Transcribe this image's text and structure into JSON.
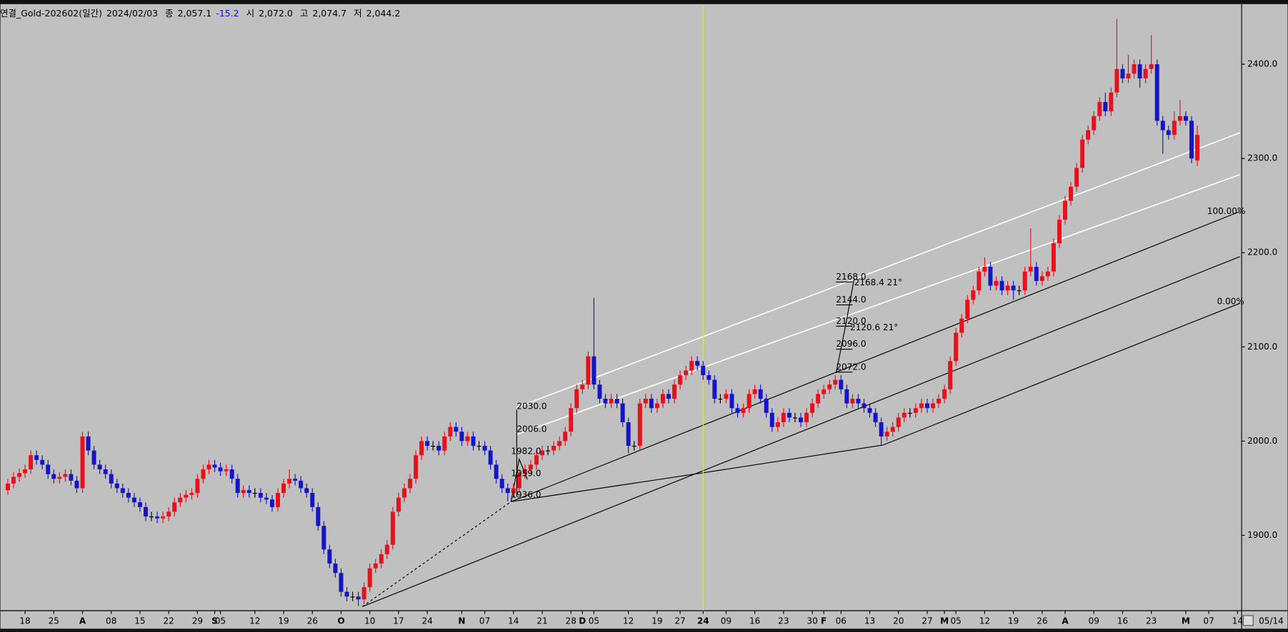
{
  "chart_data": {
    "type": "candlestick",
    "header": [
      "연결_Gold-202602(일간)",
      "2024/02/03",
      "종",
      "2,057.1",
      "-15.2",
      "시",
      "2,072.0",
      "고",
      "2,074.7",
      "저",
      "2,044.2"
    ],
    "open": [
      1948,
      1955,
      1962,
      1966,
      1970,
      1985,
      1980,
      1975,
      1965,
      1960,
      1962,
      1965,
      1958,
      1950,
      2005,
      1990,
      1975,
      1970,
      1965,
      1955,
      1950,
      1945,
      1940,
      1935,
      1930,
      1920,
      1920,
      1918,
      1920,
      1925,
      1935,
      1940,
      1943,
      1945,
      1960,
      1970,
      1975,
      1972,
      1968,
      1970,
      1960,
      1945,
      1948,
      1945,
      1945,
      1940,
      1938,
      1930,
      1945,
      1955,
      1960,
      1958,
      1950,
      1945,
      1930,
      1910,
      1885,
      1870,
      1860,
      1840,
      1835,
      1835,
      1832,
      1845,
      1865,
      1870,
      1880,
      1890,
      1925,
      1940,
      1950,
      1960,
      1985,
      2000,
      1995,
      1995,
      1990,
      2005,
      2015,
      2010,
      2000,
      2005,
      1995,
      1995,
      1990,
      1975,
      1960,
      1950,
      1945,
      1950,
      1965,
      1970,
      1975,
      1985,
      1990,
      1990,
      1995,
      2000,
      2010,
      2035,
      2055,
      2060,
      2090,
      2060,
      2045,
      2040,
      2045,
      2040,
      2020,
      1995,
      1995,
      2040,
      2045,
      2035,
      2040,
      2050,
      2045,
      2060,
      2070,
      2075,
      2085,
      2080,
      2070,
      2065,
      2045,
      2045,
      2050,
      2035,
      2030,
      2035,
      2050,
      2055,
      2045,
      2030,
      2015,
      2020,
      2030,
      2025,
      2025,
      2020,
      2030,
      2040,
      2050,
      2055,
      2060,
      2065,
      2055,
      2040,
      2045,
      2040,
      2035,
      2030,
      2020,
      2005,
      2010,
      2015,
      2025,
      2030,
      2030,
      2035,
      2040,
      2035,
      2040,
      2045,
      2055,
      2085,
      2115,
      2130,
      2150,
      2160,
      2180,
      2185,
      2165,
      2170,
      2160,
      2165,
      2160,
      2160,
      2180,
      2185,
      2170,
      2175,
      2180,
      2210,
      2235,
      2255,
      2270,
      2290,
      2320,
      2330,
      2345,
      2360,
      2350,
      2370,
      2395,
      2385,
      2390,
      2400,
      2385,
      2395,
      2400,
      2340,
      2330,
      2325,
      2340,
      2345,
      2340,
      2298
    ],
    "high": [
      1960,
      1967,
      1971,
      1975,
      1990,
      1990,
      1985,
      1980,
      1970,
      1967,
      1970,
      1970,
      1963,
      2010,
      2010,
      1995,
      1980,
      1975,
      1970,
      1960,
      1955,
      1950,
      1945,
      1940,
      1935,
      1925,
      1925,
      1925,
      1930,
      1940,
      1945,
      1948,
      1950,
      1965,
      1975,
      1980,
      1980,
      1977,
      1975,
      1975,
      1965,
      1953,
      1953,
      1950,
      1950,
      1945,
      1943,
      1950,
      1960,
      1970,
      1965,
      1963,
      1955,
      1950,
      1935,
      1915,
      1890,
      1875,
      1865,
      1845,
      1840,
      1840,
      1850,
      1870,
      1875,
      1885,
      1895,
      1930,
      1945,
      1955,
      1965,
      1990,
      2005,
      2005,
      2000,
      2000,
      2010,
      2020,
      2020,
      2015,
      2010,
      2010,
      2000,
      2000,
      1995,
      1980,
      1965,
      1955,
      1955,
      1970,
      1975,
      1980,
      1990,
      1995,
      1995,
      2000,
      2005,
      2015,
      2040,
      2060,
      2065,
      2095,
      2152,
      2065,
      2050,
      2050,
      2050,
      2045,
      2025,
      2000,
      2045,
      2050,
      2050,
      2045,
      2055,
      2055,
      2065,
      2075,
      2080,
      2090,
      2090,
      2085,
      2075,
      2070,
      2050,
      2055,
      2055,
      2040,
      2040,
      2055,
      2060,
      2060,
      2050,
      2035,
      2025,
      2035,
      2035,
      2030,
      2030,
      2035,
      2045,
      2055,
      2060,
      2065,
      2070,
      2070,
      2060,
      2050,
      2050,
      2045,
      2040,
      2035,
      2025,
      2015,
      2020,
      2030,
      2035,
      2035,
      2040,
      2045,
      2045,
      2045,
      2050,
      2060,
      2090,
      2120,
      2135,
      2155,
      2165,
      2185,
      2195,
      2190,
      2175,
      2175,
      2170,
      2170,
      2165,
      2185,
      2226,
      2190,
      2180,
      2185,
      2215,
      2240,
      2260,
      2275,
      2295,
      2325,
      2335,
      2350,
      2365,
      2370,
      2375,
      2448,
      2400,
      2410,
      2405,
      2405,
      2400,
      2431,
      2405,
      2345,
      2335,
      2350,
      2362,
      2350,
      2345,
      2335
    ],
    "low": [
      1943,
      1950,
      1957,
      1961,
      1965,
      1975,
      1970,
      1960,
      1955,
      1955,
      1957,
      1953,
      1945,
      1945,
      1985,
      1970,
      1965,
      1960,
      1950,
      1945,
      1940,
      1935,
      1930,
      1925,
      1915,
      1915,
      1913,
      1913,
      1915,
      1920,
      1930,
      1935,
      1938,
      1940,
      1955,
      1965,
      1967,
      1963,
      1963,
      1955,
      1940,
      1940,
      1940,
      1940,
      1935,
      1933,
      1925,
      1925,
      1940,
      1950,
      1953,
      1945,
      1940,
      1925,
      1905,
      1880,
      1865,
      1855,
      1835,
      1830,
      1830,
      1825,
      1827,
      1840,
      1860,
      1865,
      1875,
      1885,
      1920,
      1935,
      1945,
      1955,
      1980,
      1990,
      1990,
      1985,
      1985,
      2000,
      2005,
      1995,
      1995,
      1990,
      1990,
      1985,
      1970,
      1955,
      1945,
      1936,
      1940,
      1945,
      1960,
      1965,
      1970,
      1980,
      1985,
      1985,
      1990,
      1995,
      2005,
      2030,
      2050,
      2055,
      2055,
      2040,
      2035,
      2035,
      2035,
      2015,
      1987,
      1990,
      1990,
      2035,
      2030,
      2030,
      2035,
      2040,
      2040,
      2055,
      2065,
      2070,
      2075,
      2065,
      2060,
      2040,
      2040,
      2040,
      2030,
      2025,
      2025,
      2030,
      2045,
      2040,
      2025,
      2010,
      2010,
      2015,
      2020,
      2020,
      2015,
      2015,
      2025,
      2035,
      2045,
      2050,
      2055,
      2050,
      2035,
      2035,
      2035,
      2030,
      2025,
      2015,
      1996,
      2000,
      2005,
      2010,
      2020,
      2025,
      2025,
      2030,
      2030,
      2030,
      2035,
      2040,
      2050,
      2080,
      2110,
      2125,
      2145,
      2155,
      2175,
      2160,
      2160,
      2155,
      2155,
      2150,
      2155,
      2155,
      2175,
      2165,
      2165,
      2170,
      2175,
      2205,
      2230,
      2250,
      2265,
      2285,
      2315,
      2325,
      2340,
      2345,
      2345,
      2365,
      2380,
      2380,
      2385,
      2375,
      2380,
      2390,
      2335,
      2305,
      2320,
      2320,
      2335,
      2335,
      2295,
      2292
    ],
    "close": [
      1955,
      1962,
      1966,
      1970,
      1985,
      1980,
      1975,
      1965,
      1960,
      1962,
      1965,
      1958,
      1950,
      2005,
      1990,
      1975,
      1970,
      1965,
      1955,
      1950,
      1945,
      1940,
      1935,
      1930,
      1920,
      1920,
      1918,
      1920,
      1925,
      1935,
      1940,
      1943,
      1945,
      1960,
      1970,
      1975,
      1972,
      1968,
      1970,
      1960,
      1945,
      1948,
      1945,
      1945,
      1940,
      1938,
      1930,
      1945,
      1955,
      1960,
      1958,
      1950,
      1945,
      1930,
      1910,
      1885,
      1870,
      1860,
      1840,
      1835,
      1835,
      1832,
      1845,
      1865,
      1870,
      1880,
      1890,
      1925,
      1940,
      1950,
      1960,
      1985,
      2000,
      1995,
      1995,
      1990,
      2005,
      2015,
      2010,
      2000,
      2005,
      1995,
      1995,
      1990,
      1975,
      1960,
      1950,
      1945,
      1950,
      1965,
      1970,
      1975,
      1985,
      1990,
      1990,
      1995,
      2000,
      2010,
      2035,
      2055,
      2060,
      2090,
      2060,
      2045,
      2040,
      2045,
      2040,
      2020,
      1995,
      1995,
      2040,
      2045,
      2035,
      2040,
      2050,
      2045,
      2060,
      2070,
      2075,
      2085,
      2080,
      2070,
      2065,
      2045,
      2045,
      2050,
      2035,
      2030,
      2035,
      2050,
      2055,
      2045,
      2030,
      2015,
      2020,
      2030,
      2025,
      2025,
      2020,
      2030,
      2040,
      2050,
      2055,
      2060,
      2065,
      2055,
      2040,
      2045,
      2040,
      2035,
      2030,
      2020,
      2005,
      2010,
      2015,
      2025,
      2030,
      2030,
      2035,
      2040,
      2035,
      2040,
      2045,
      2055,
      2085,
      2115,
      2130,
      2150,
      2160,
      2180,
      2185,
      2165,
      2170,
      2160,
      2165,
      2160,
      2160,
      2180,
      2185,
      2170,
      2175,
      2180,
      2210,
      2235,
      2255,
      2270,
      2290,
      2320,
      2330,
      2345,
      2360,
      2350,
      2370,
      2395,
      2385,
      2390,
      2400,
      2385,
      2395,
      2400,
      2340,
      2330,
      2325,
      2340,
      2345,
      2340,
      2300,
      2325
    ],
    "up_color": "#e8101a",
    "down_color": "#1414c8",
    "xlim": [
      -1.29,
      214.43
    ],
    "xticks": [
      {
        "value": 3,
        "label": "18"
      },
      {
        "value": 8,
        "label": "25"
      },
      {
        "value": 13,
        "label": "A"
      },
      {
        "value": 18,
        "label": "08"
      },
      {
        "value": 23,
        "label": "15"
      },
      {
        "value": 28,
        "label": "22"
      },
      {
        "value": 33,
        "label": "29"
      },
      {
        "value": 36,
        "label": "S"
      },
      {
        "value": 37,
        "label": "05"
      },
      {
        "value": 43,
        "label": "12"
      },
      {
        "value": 48,
        "label": "19"
      },
      {
        "value": 53,
        "label": "26"
      },
      {
        "value": 58,
        "label": "O"
      },
      {
        "value": 63,
        "label": "10"
      },
      {
        "value": 68,
        "label": "17"
      },
      {
        "value": 73,
        "label": "24"
      },
      {
        "value": 79,
        "label": "N"
      },
      {
        "value": 83,
        "label": "07"
      },
      {
        "value": 88,
        "label": "14"
      },
      {
        "value": 93,
        "label": "21"
      },
      {
        "value": 98,
        "label": "28"
      },
      {
        "value": 100,
        "label": "D"
      },
      {
        "value": 102,
        "label": "05"
      },
      {
        "value": 108,
        "label": "12"
      },
      {
        "value": 113,
        "label": "19"
      },
      {
        "value": 117,
        "label": "27"
      },
      {
        "value": 121,
        "label": "24"
      },
      {
        "value": 125,
        "label": "09"
      },
      {
        "value": 130,
        "label": "16"
      },
      {
        "value": 135,
        "label": "23"
      },
      {
        "value": 140,
        "label": "30"
      },
      {
        "value": 142,
        "label": "F"
      },
      {
        "value": 145,
        "label": "06"
      },
      {
        "value": 150,
        "label": "13"
      },
      {
        "value": 155,
        "label": "20"
      },
      {
        "value": 160,
        "label": "27"
      },
      {
        "value": 163,
        "label": "M"
      },
      {
        "value": 165,
        "label": "05"
      },
      {
        "value": 170,
        "label": "12"
      },
      {
        "value": 175,
        "label": "19"
      },
      {
        "value": 180,
        "label": "26"
      },
      {
        "value": 184,
        "label": "A"
      },
      {
        "value": 189,
        "label": "09"
      },
      {
        "value": 194,
        "label": "16"
      },
      {
        "value": 199,
        "label": "23"
      },
      {
        "value": 205,
        "label": "M"
      },
      {
        "value": 209,
        "label": "07"
      },
      {
        "value": 214,
        "label": "14"
      }
    ],
    "end_label": "05/14",
    "ylim": [
      1820,
      2463
    ],
    "yticks": [
      {
        "value": 1900,
        "label": "1900.0"
      },
      {
        "value": 2000,
        "label": "2000.0"
      },
      {
        "value": 2100,
        "label": "2100.0"
      },
      {
        "value": 2200,
        "label": "2200.0"
      },
      {
        "value": 2300,
        "label": "2300.0"
      },
      {
        "value": 2400,
        "label": "2400.0"
      }
    ],
    "annotations": [
      "2030.0",
      "2006.0",
      "1982.0",
      "1959.0",
      "1936.0",
      "2168.0",
      "2144.0",
      "2120.0",
      "2096.0",
      "2072.0",
      "2168.4  21°",
      "2120.6  21°",
      "100.00%",
      "0.00%"
    ]
  }
}
